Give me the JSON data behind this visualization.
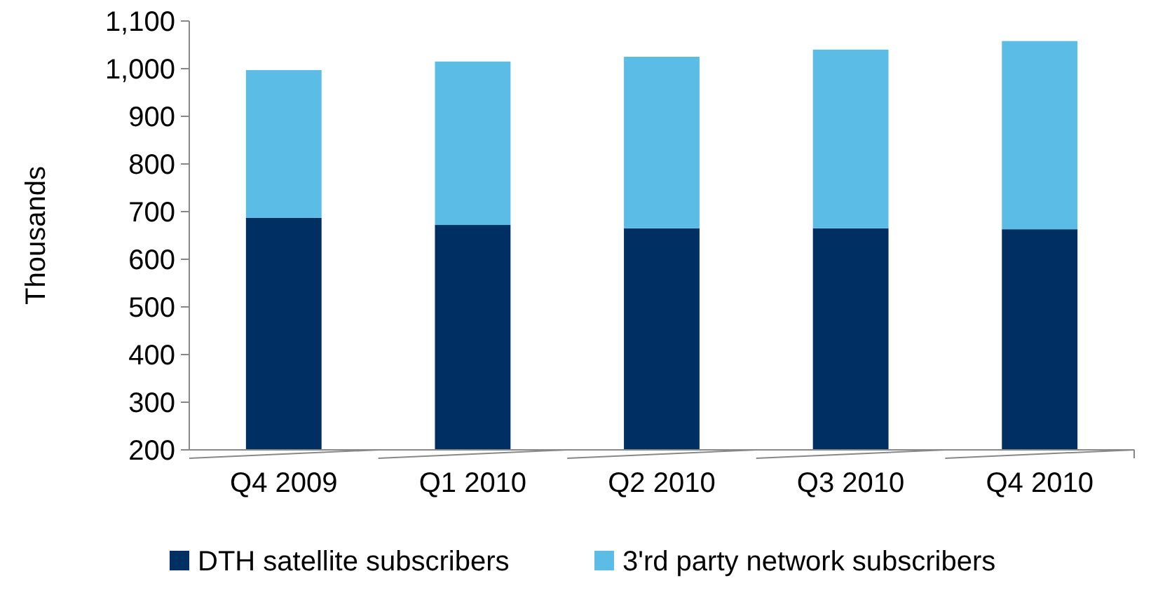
{
  "chart_data": {
    "type": "bar",
    "stacked": true,
    "ylabel": "Thousands",
    "categories": [
      "Q4 2009",
      "Q1 2010",
      "Q2 2010",
      "Q3 2010",
      "Q4 2010"
    ],
    "series": [
      {
        "name": "DTH satellite subscribers",
        "color": "#003063",
        "values": [
          687,
          672,
          665,
          665,
          663
        ]
      },
      {
        "name": "3'rd party network subscribers",
        "color": "#5bbde6",
        "values": [
          310,
          343,
          360,
          375,
          395
        ]
      }
    ],
    "ylim": [
      200,
      1100
    ],
    "yticks": [
      {
        "value": 200,
        "label": "200"
      },
      {
        "value": 300,
        "label": "300"
      },
      {
        "value": 400,
        "label": "400"
      },
      {
        "value": 500,
        "label": "500"
      },
      {
        "value": 600,
        "label": "600"
      },
      {
        "value": 700,
        "label": "700"
      },
      {
        "value": 800,
        "label": "800"
      },
      {
        "value": 900,
        "label": "900"
      },
      {
        "value": 1000,
        "label": "1,000"
      },
      {
        "value": 1100,
        "label": "1,100"
      }
    ],
    "grid": false,
    "legend": "bottom"
  }
}
